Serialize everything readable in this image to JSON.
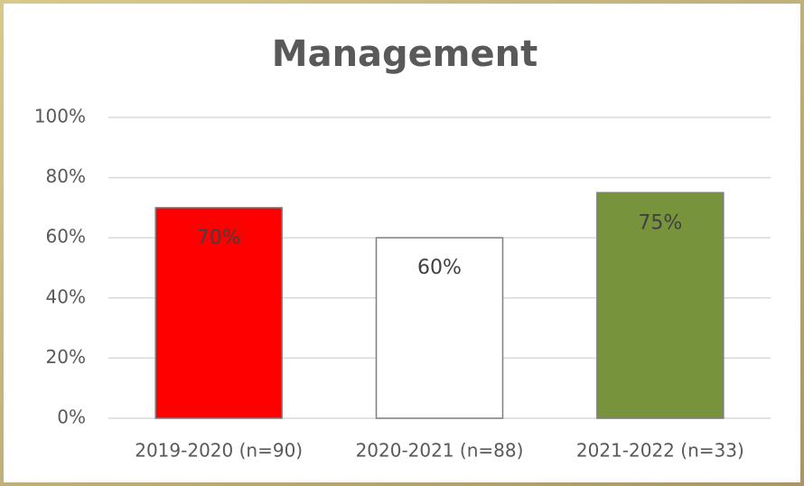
{
  "chart_data": {
    "type": "bar",
    "title": "Management",
    "categories": [
      "2019-2020 (n=90)",
      "2020-2021 (n=88)",
      "2021-2022 (n=33)"
    ],
    "values": [
      70,
      60,
      75
    ],
    "value_labels": [
      "70%",
      "60%",
      "75%"
    ],
    "colors": [
      "#ff0000",
      "#ffffff",
      "#77933c"
    ],
    "ylim": [
      0,
      100
    ],
    "yticks": [
      {
        "value": 0,
        "label": "0%"
      },
      {
        "value": 20,
        "label": "20%"
      },
      {
        "value": 40,
        "label": "40%"
      },
      {
        "value": 60,
        "label": "60%"
      },
      {
        "value": 80,
        "label": "80%"
      },
      {
        "value": 100,
        "label": "100%"
      }
    ],
    "grid": true
  }
}
